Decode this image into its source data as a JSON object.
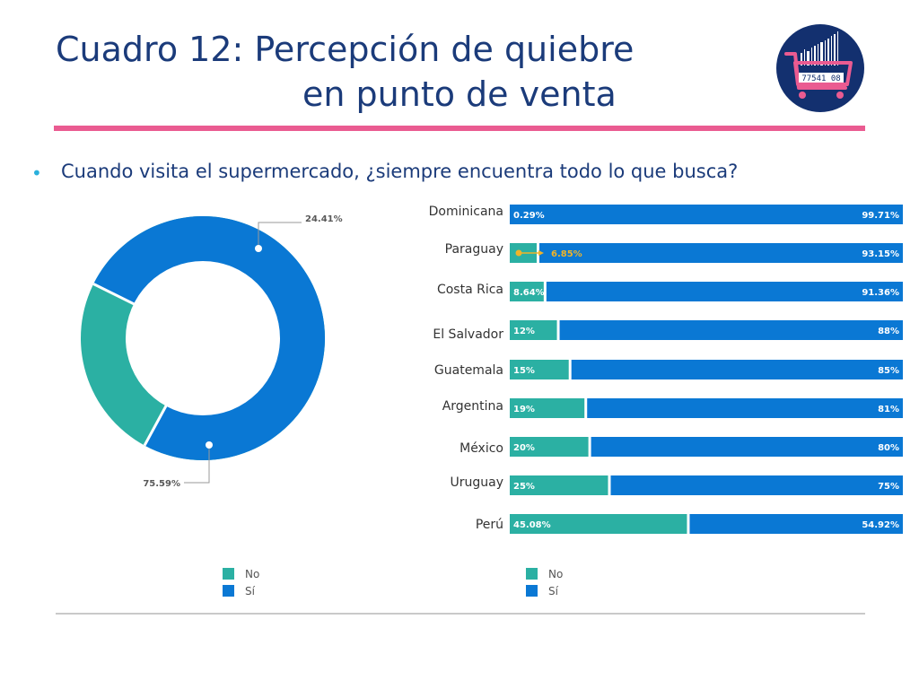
{
  "header": {
    "title_line1": "Cuadro 12: Percepción de quiebre",
    "title_line2": "en punto de venta",
    "logo_code": "77541 08"
  },
  "question": {
    "bullet": "•",
    "text": "Cuando visita el supermercado, ¿siempre encuentra todo lo que busca?"
  },
  "colors": {
    "no": "#2bb0a3",
    "si": "#0a78d4",
    "accent": "#ea5b91",
    "title": "#1b3b7a",
    "highlight": "#f0b429"
  },
  "chart_data": [
    {
      "type": "pie",
      "style": "donut",
      "slices": [
        {
          "label": "No",
          "value": 24.41,
          "display": "24.41%"
        },
        {
          "label": "Sí",
          "value": 75.59,
          "display": "75.59%"
        }
      ],
      "legend": [
        "No",
        "Sí"
      ],
      "legend_position": "bottom"
    },
    {
      "type": "bar",
      "orientation": "horizontal",
      "stacked": "100%",
      "categories": [
        "Dominicana",
        "Paraguay",
        "Costa Rica",
        "El Salvador",
        "Guatemala",
        "Argentina",
        "México",
        "Uruguay",
        "Perú"
      ],
      "series": [
        {
          "name": "No",
          "values": [
            0.29,
            6.85,
            8.64,
            12,
            15,
            19,
            20,
            25,
            45.08
          ],
          "labels": [
            "0.29%",
            "6.85%",
            "8.64%",
            "12%",
            "15%",
            "19%",
            "20%",
            "25%",
            "45.08%"
          ]
        },
        {
          "name": "Sí",
          "values": [
            99.71,
            93.15,
            91.36,
            88,
            85,
            81,
            80,
            75,
            54.92
          ],
          "labels": [
            "99.71%",
            "93.15%",
            "91.36%",
            "88%",
            "85%",
            "81%",
            "80%",
            "75%",
            "54.92%"
          ]
        }
      ],
      "legend": [
        "No",
        "Sí"
      ],
      "legend_position": "bottom"
    }
  ]
}
